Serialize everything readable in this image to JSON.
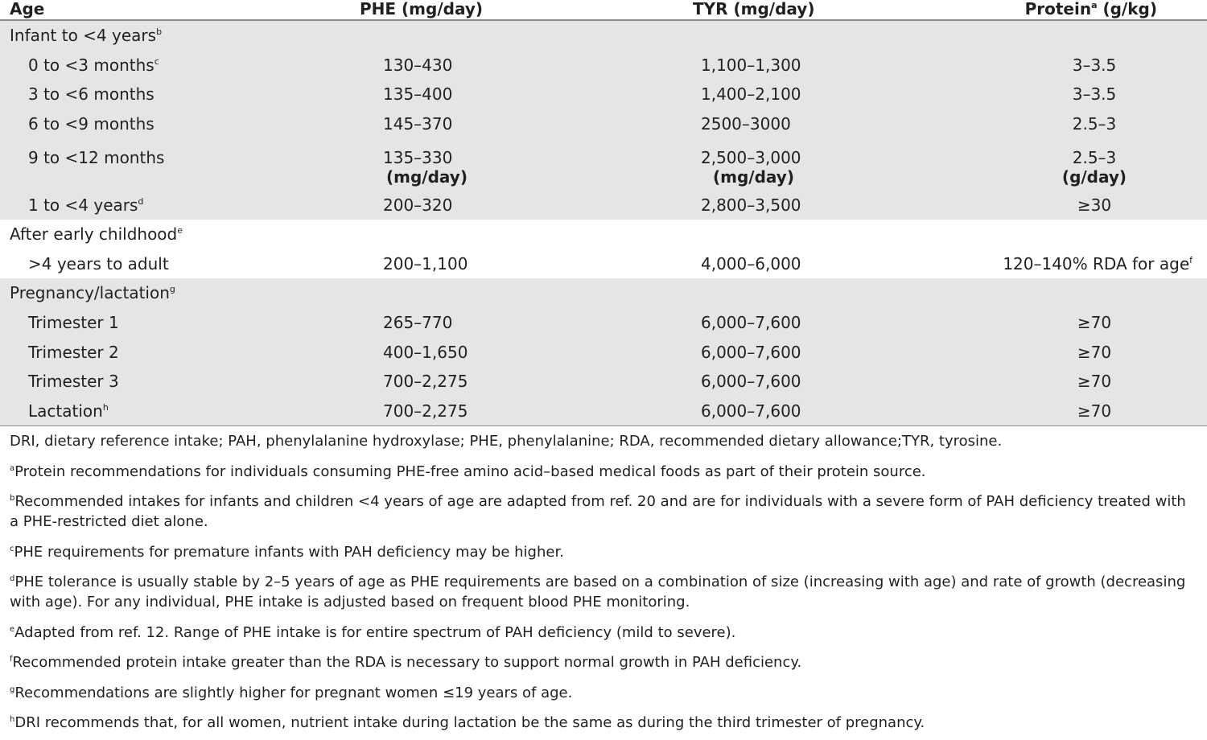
{
  "header": {
    "age": "Age",
    "phe": "PHE (mg/day)",
    "tyr": "TYR (mg/day)",
    "protein": "Protein",
    "protein_sup": "a",
    "protein_unit": " (g/kg)"
  },
  "groups": {
    "infant": {
      "label": "Infant to <4 years",
      "sup": "b"
    },
    "early": {
      "label": "After early childhood",
      "sup": "e"
    },
    "preg": {
      "label": "Pregnancy/lactation",
      "sup": "g"
    }
  },
  "rows": {
    "r0to3": {
      "age": "0 to <3 months",
      "sup": "c",
      "phe": "130–430",
      "tyr": "1,100–1,300",
      "protein": "3–3.5"
    },
    "r3to6": {
      "age": "3 to <6 months",
      "phe": "135–400",
      "tyr": "1,400–2,100",
      "protein": "3–3.5"
    },
    "r6to9": {
      "age": "6 to <9 months",
      "phe": "145–370",
      "tyr": "2500–3000",
      "protein": "2.5–3"
    },
    "r9to12": {
      "age": "9 to <12 months",
      "phe": "135–330",
      "tyr": "2,500–3,000",
      "protein": "2.5–3"
    },
    "units": {
      "phe": "(mg/day)",
      "tyr": "(mg/day)",
      "protein": "(g/day)"
    },
    "r1to4": {
      "age": "1 to <4 years",
      "sup": "d",
      "phe": "200–320",
      "tyr": "2,800–3,500",
      "protein": "≥30"
    },
    "adult": {
      "age": ">4 years to adult",
      "phe": "200–1,100",
      "tyr": "4,000–6,000",
      "protein": "120–140% RDA for age",
      "protein_sup": "f"
    },
    "t1": {
      "age": "Trimester 1",
      "phe": "265–770",
      "tyr": "6,000–7,600",
      "protein": "≥70"
    },
    "t2": {
      "age": "Trimester 2",
      "phe": "400–1,650",
      "tyr": "6,000–7,600",
      "protein": "≥70"
    },
    "t3": {
      "age": "Trimester 3",
      "phe": "700–2,275",
      "tyr": "6,000–7,600",
      "protein": "≥70"
    },
    "lact": {
      "age": "Lactation",
      "sup": "h",
      "phe": "700–2,275",
      "tyr": "6,000–7,600",
      "protein": "≥70"
    }
  },
  "notes": {
    "abbrev": "DRI, dietary reference intake; PAH, phenylalanine hydroxylase; PHE, phenylalanine; RDA, recommended dietary allowance;TYR, tyrosine.",
    "a": {
      "mark": "a",
      "text": "Protein recommendations for individuals consuming PHE-free amino acid–based medical foods as part of their protein source."
    },
    "b": {
      "mark": "b",
      "text": "Recommended intakes for infants and children <4 years of age are adapted from ref. 20 and are for individuals with a severe form of PAH deficiency treated with a PHE-restricted diet alone."
    },
    "c": {
      "mark": "c",
      "text": "PHE requirements for premature infants with PAH deficiency may be higher."
    },
    "d": {
      "mark": "d",
      "text": "PHE tolerance is usually stable by 2–5 years of age as PHE requirements are based on a combination of size (increasing with age) and rate of growth (decreasing with age). For any individual, PHE intake is adjusted based on frequent blood PHE monitoring."
    },
    "e": {
      "mark": "e",
      "text": "Adapted from ref. 12. Range of PHE intake is for entire spectrum of PAH deficiency (mild to severe)."
    },
    "f": {
      "mark": "f",
      "text": "Recommended protein intake greater than the RDA is necessary to support normal growth in PAH deficiency."
    },
    "g": {
      "mark": "g",
      "text": "Recommendations are slightly higher for pregnant women ≤19 years of age."
    },
    "h": {
      "mark": "h",
      "text": "DRI recommends that, for all women, nutrient intake during lactation be the same as during the third trimester of pregnancy."
    }
  }
}
